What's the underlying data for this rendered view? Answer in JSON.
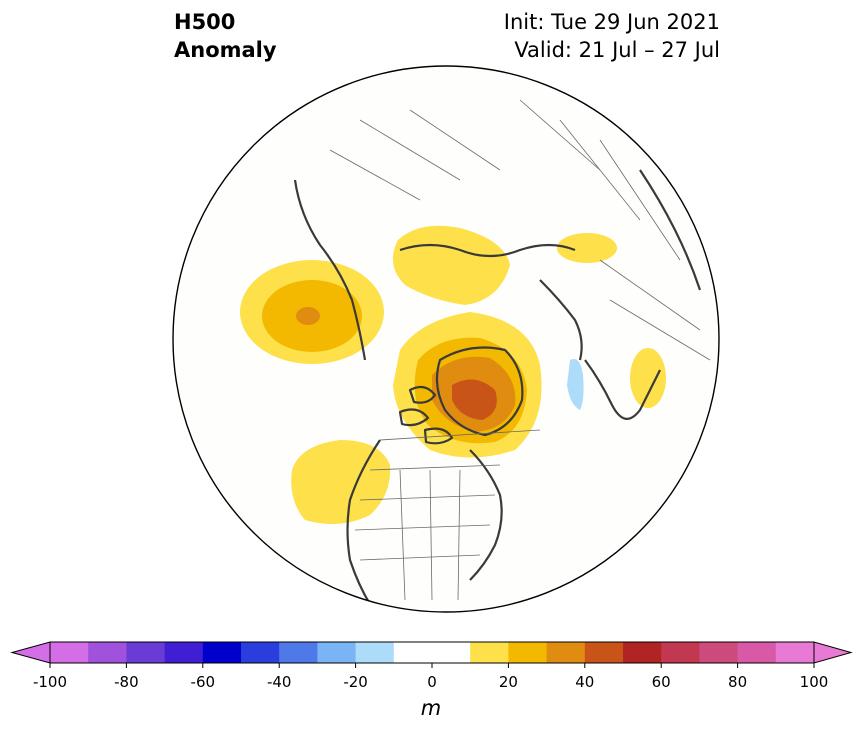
{
  "header": {
    "title_line1": "H500",
    "title_line2": "Anomaly",
    "init_text": "Init: Tue 29 Jun 2021",
    "valid_text": "Valid: 21 Jul – 27 Jul"
  },
  "map": {
    "projection": "north-polar-stereographic",
    "coastline_color": "#3a3a3a",
    "border_color": "#555555",
    "anomalies": [
      {
        "region": "Greenland",
        "peak_m": 50,
        "sign": "positive"
      },
      {
        "region": "Alaska / Yukon",
        "peak_m": 30,
        "sign": "positive"
      },
      {
        "region": "Pacific Northwest",
        "peak_m": 20,
        "sign": "positive"
      },
      {
        "region": "Siberian Arctic",
        "peak_m": 15,
        "sign": "positive"
      },
      {
        "region": "Central Siberia",
        "peak_m": 15,
        "sign": "positive"
      },
      {
        "region": "Western Europe",
        "peak_m": 15,
        "sign": "positive"
      },
      {
        "region": "Scandinavia",
        "peak_m": -15,
        "sign": "negative"
      }
    ]
  },
  "colorbar": {
    "unit": "m",
    "tick_labels": [
      "-100",
      "-80",
      "-60",
      "-40",
      "-20",
      "0",
      "20",
      "40",
      "60",
      "80",
      "100"
    ],
    "colors": [
      "#d46ee6",
      "#a052dc",
      "#6a3cd6",
      "#3f1ed4",
      "#0000cc",
      "#2a3ede",
      "#4f78e8",
      "#7ab4f4",
      "#addcfa",
      "#ffffff",
      "#ffffff",
      "#fde04a",
      "#f2b900",
      "#e08c10",
      "#c85418",
      "#b02424",
      "#c23850",
      "#cc4a7c",
      "#d85aa6",
      "#e87ad6"
    ],
    "bounds": [
      -100,
      100
    ],
    "extend": "both"
  }
}
